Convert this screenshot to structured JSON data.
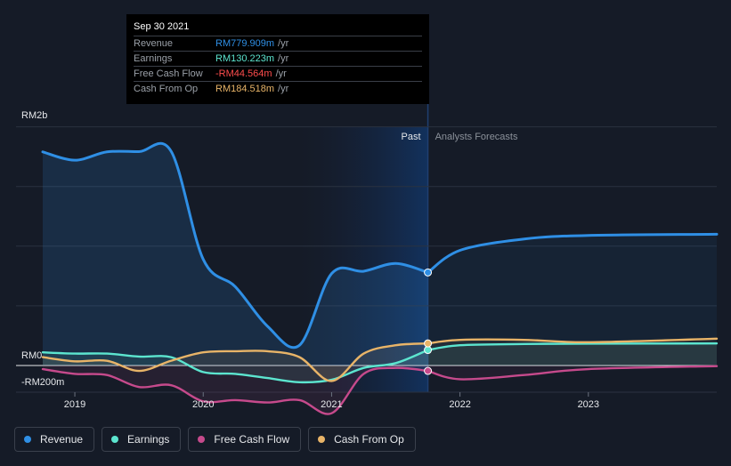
{
  "chart_data": {
    "type": "line",
    "x_start": 2018.75,
    "past_end": 2021.75,
    "x_end": 2024.0,
    "ylim": [
      -200,
      2000
    ],
    "y_tick_labels": [
      {
        "value": 2000,
        "label": "RM2b"
      },
      {
        "value": 0,
        "label": "RM0"
      },
      {
        "value": -200,
        "label": "-RM200m"
      }
    ],
    "x_tick_labels": [
      {
        "value": 2019,
        "label": "2019"
      },
      {
        "value": 2020,
        "label": "2020"
      },
      {
        "value": 2021,
        "label": "2021"
      },
      {
        "value": 2022,
        "label": "2022"
      },
      {
        "value": 2023,
        "label": "2023"
      }
    ],
    "past_label": "Past",
    "forecast_label": "Analysts Forecasts",
    "series": [
      {
        "name": "Revenue",
        "color": "#2f8fe5",
        "past": [
          [
            2018.75,
            1790
          ],
          [
            2019.0,
            1720
          ],
          [
            2019.25,
            1790
          ],
          [
            2019.5,
            1792
          ],
          [
            2019.75,
            1795
          ],
          [
            2020.0,
            890
          ],
          [
            2020.25,
            660
          ],
          [
            2020.5,
            330
          ],
          [
            2020.75,
            170
          ],
          [
            2021.0,
            770
          ],
          [
            2021.25,
            790
          ],
          [
            2021.5,
            855
          ],
          [
            2021.75,
            780
          ]
        ],
        "forecast": [
          [
            2021.75,
            780
          ],
          [
            2022.0,
            965
          ],
          [
            2022.5,
            1060
          ],
          [
            2023.0,
            1090
          ],
          [
            2024.0,
            1100
          ]
        ]
      },
      {
        "name": "Earnings",
        "color": "#5ce5cf",
        "past": [
          [
            2018.75,
            110
          ],
          [
            2019.0,
            100
          ],
          [
            2019.25,
            100
          ],
          [
            2019.5,
            75
          ],
          [
            2019.75,
            70
          ],
          [
            2020.0,
            -55
          ],
          [
            2020.25,
            -70
          ],
          [
            2020.5,
            -105
          ],
          [
            2020.75,
            -140
          ],
          [
            2021.0,
            -120
          ],
          [
            2021.25,
            -20
          ],
          [
            2021.5,
            20
          ],
          [
            2021.75,
            130
          ]
        ],
        "forecast": [
          [
            2021.75,
            130
          ],
          [
            2022.0,
            170
          ],
          [
            2022.5,
            180
          ],
          [
            2023.0,
            183
          ],
          [
            2024.0,
            185
          ]
        ]
      },
      {
        "name": "Free Cash Flow",
        "color": "#c64a8c",
        "past": [
          [
            2018.75,
            -30
          ],
          [
            2019.0,
            -70
          ],
          [
            2019.25,
            -80
          ],
          [
            2019.5,
            -180
          ],
          [
            2019.75,
            -165
          ],
          [
            2020.0,
            -300
          ],
          [
            2020.25,
            -290
          ],
          [
            2020.5,
            -310
          ],
          [
            2020.75,
            -290
          ],
          [
            2021.0,
            -400
          ],
          [
            2021.25,
            -70
          ],
          [
            2021.5,
            -20
          ],
          [
            2021.75,
            -45
          ]
        ],
        "forecast": [
          [
            2021.75,
            -45
          ],
          [
            2022.0,
            -115
          ],
          [
            2022.5,
            -80
          ],
          [
            2023.0,
            -30
          ],
          [
            2024.0,
            -5
          ]
        ]
      },
      {
        "name": "Cash From Op",
        "color": "#e8b468",
        "past": [
          [
            2018.75,
            70
          ],
          [
            2019.0,
            35
          ],
          [
            2019.25,
            40
          ],
          [
            2019.5,
            -45
          ],
          [
            2019.75,
            40
          ],
          [
            2020.0,
            110
          ],
          [
            2020.25,
            120
          ],
          [
            2020.5,
            120
          ],
          [
            2020.75,
            70
          ],
          [
            2021.0,
            -130
          ],
          [
            2021.25,
            100
          ],
          [
            2021.5,
            170
          ],
          [
            2021.75,
            185
          ]
        ],
        "forecast": [
          [
            2021.75,
            185
          ],
          [
            2022.0,
            215
          ],
          [
            2022.5,
            215
          ],
          [
            2023.0,
            195
          ],
          [
            2024.0,
            225
          ]
        ]
      }
    ]
  },
  "tooltip": {
    "date": "Sep 30 2021",
    "rows": [
      {
        "label": "Revenue",
        "value": "RM779.909m",
        "unit": "/yr",
        "color": "#2f8fe5"
      },
      {
        "label": "Earnings",
        "value": "RM130.223m",
        "unit": "/yr",
        "color": "#5ce5cf"
      },
      {
        "label": "Free Cash Flow",
        "value": "-RM44.564m",
        "unit": "/yr",
        "color": "#ff4d4d"
      },
      {
        "label": "Cash From Op",
        "value": "RM184.518m",
        "unit": "/yr",
        "color": "#e8b468"
      }
    ]
  },
  "legend": [
    {
      "label": "Revenue",
      "color": "#2f8fe5"
    },
    {
      "label": "Earnings",
      "color": "#5ce5cf"
    },
    {
      "label": "Free Cash Flow",
      "color": "#c64a8c"
    },
    {
      "label": "Cash From Op",
      "color": "#e8b468"
    }
  ]
}
